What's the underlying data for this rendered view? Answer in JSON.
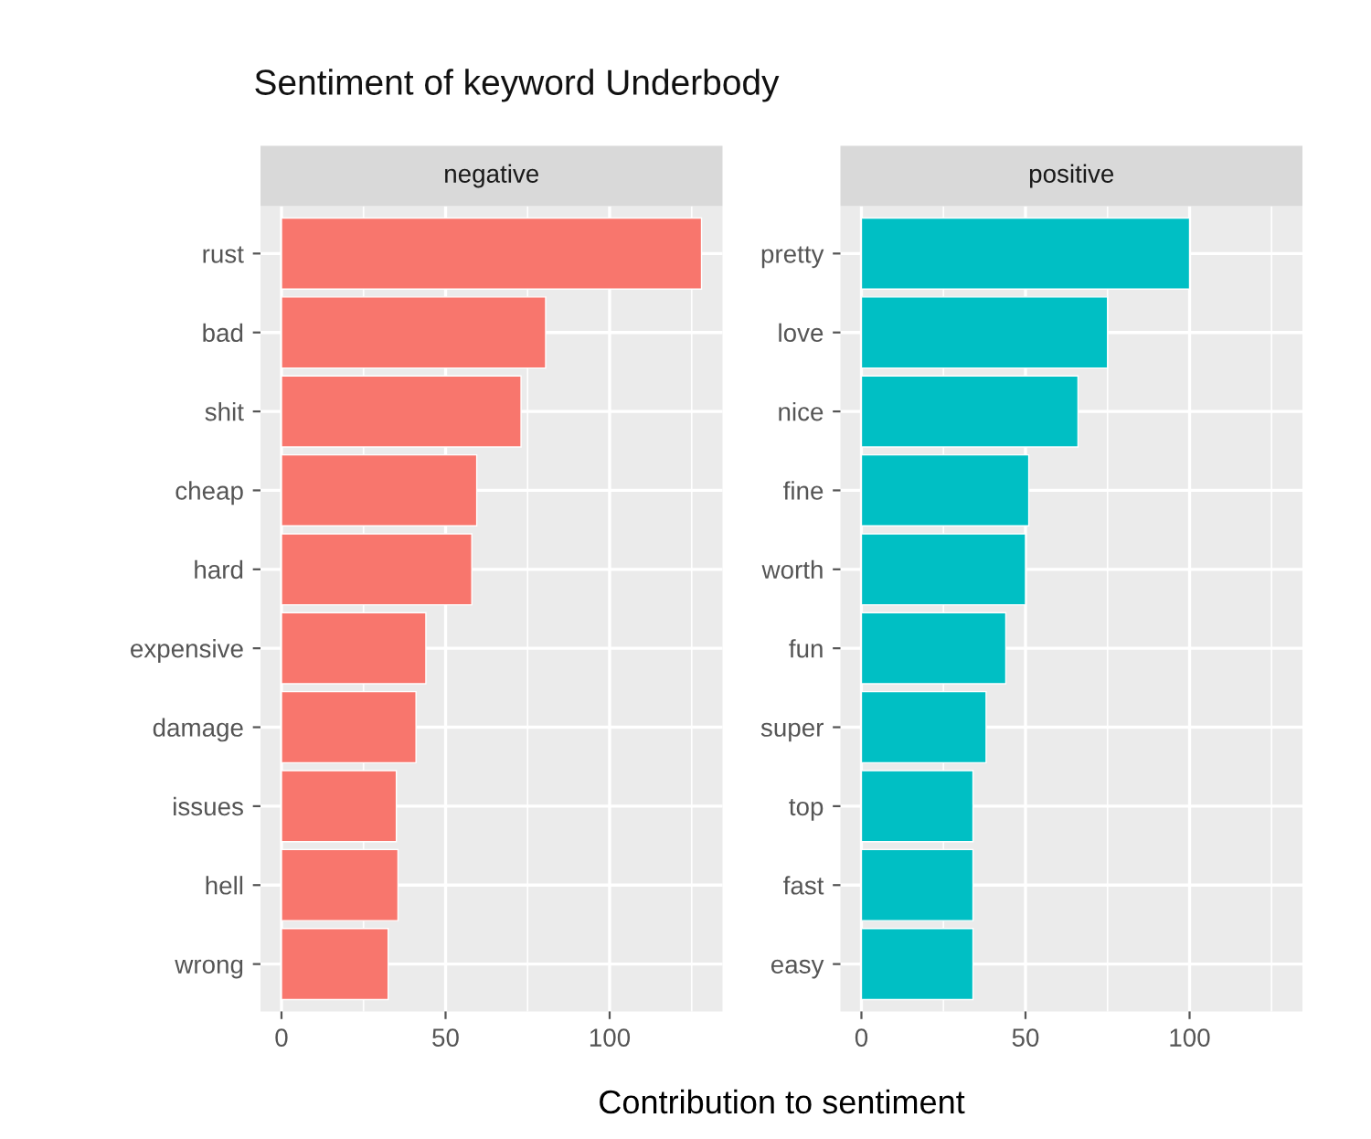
{
  "chart_data": [
    {
      "type": "bar",
      "orientation": "horizontal",
      "title": "Sentiment of keyword Underbody",
      "subtitle": "negative",
      "xlabel": "Contribution to sentiment",
      "categories": [
        "rust",
        "bad",
        "shit",
        "cheap",
        "hard",
        "expensive",
        "damage",
        "issues",
        "hell",
        "wrong"
      ],
      "values": [
        128,
        80.5,
        73,
        59.5,
        58,
        44,
        41,
        35,
        35.5,
        32.5
      ],
      "color": "#f8766d",
      "xlim": [
        -6.4,
        134.4
      ],
      "xticks": [
        0,
        50,
        100
      ],
      "grid": true
    },
    {
      "type": "bar",
      "orientation": "horizontal",
      "subtitle": "positive",
      "categories": [
        "pretty",
        "love",
        "nice",
        "fine",
        "worth",
        "fun",
        "super",
        "top",
        "fast",
        "easy"
      ],
      "values": [
        100,
        75,
        66,
        51,
        50,
        44,
        38,
        34,
        34,
        34
      ],
      "color": "#00bfc4",
      "xlim": [
        -6.4,
        134.4
      ],
      "xticks": [
        0,
        50,
        100
      ],
      "grid": true
    }
  ]
}
